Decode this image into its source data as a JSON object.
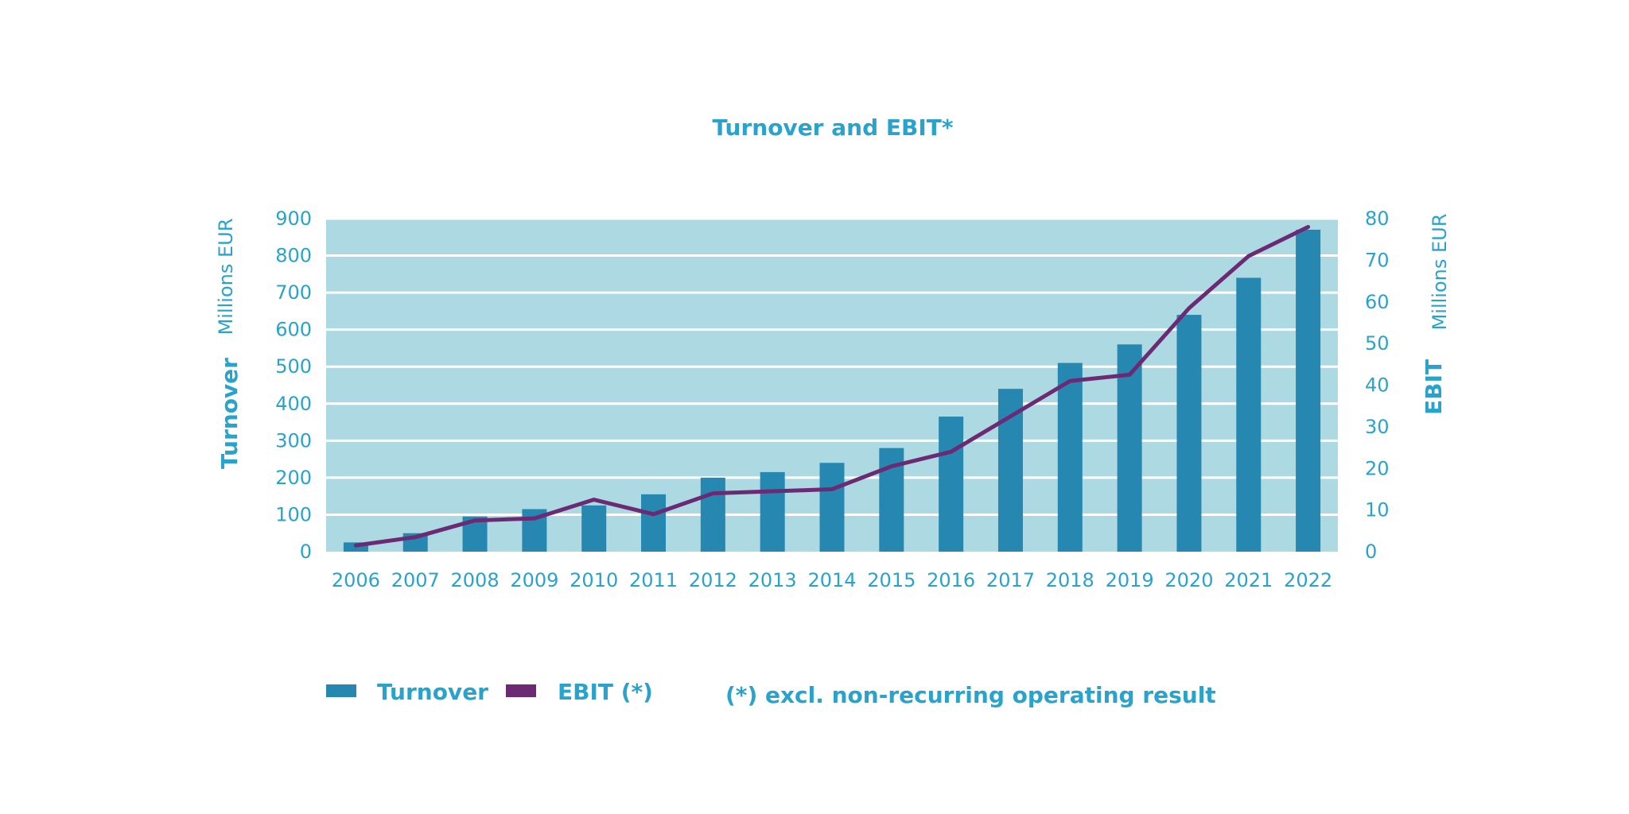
{
  "chart_data": {
    "type": "bar",
    "title": "Turnover and EBIT*",
    "categories": [
      "2006",
      "2007",
      "2008",
      "2009",
      "2010",
      "2011",
      "2012",
      "2013",
      "2014",
      "2015",
      "2016",
      "2017",
      "2018",
      "2019",
      "2020",
      "2021",
      "2022"
    ],
    "series": [
      {
        "name": "Turnover",
        "type": "bar",
        "axis": "left",
        "values": [
          25,
          50,
          95,
          115,
          125,
          155,
          200,
          215,
          240,
          280,
          365,
          440,
          510,
          560,
          640,
          740,
          870
        ]
      },
      {
        "name": "EBIT (*)",
        "type": "line",
        "axis": "right",
        "values": [
          1.5,
          3.5,
          7.5,
          8,
          12.5,
          9,
          14,
          14.5,
          15,
          20.5,
          24,
          32.5,
          41,
          42.5,
          58.5,
          71,
          78
        ]
      }
    ],
    "y_left": {
      "title": "Turnover",
      "unit": "Millions EUR",
      "ylim": [
        0,
        900
      ],
      "ticks": [
        "0",
        "100",
        "200",
        "300",
        "400",
        "500",
        "600",
        "700",
        "800",
        "900"
      ]
    },
    "y_right": {
      "title": "EBIT",
      "unit": "Millions EUR",
      "ylim": [
        0,
        80
      ],
      "ticks": [
        "0",
        "10",
        "20",
        "30",
        "40",
        "50",
        "60",
        "70",
        "80"
      ]
    },
    "grid": true,
    "legend_position": "bottom-left",
    "note": "(*) excl. non-recurring operating result",
    "colors": {
      "plot_bg": "#add9e3",
      "bar": "#2687b0",
      "line": "#6b2a73",
      "text": "#2aa3cc",
      "grid": "#ffffff"
    }
  }
}
